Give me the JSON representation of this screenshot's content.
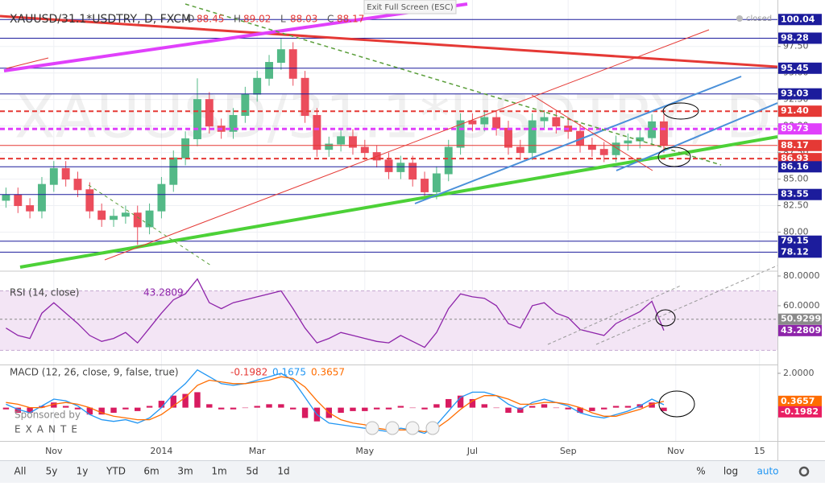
{
  "header": {
    "status": "closed",
    "exit_full_screen": "Exit Full Screen (ESC)",
    "sponsor": "Sponsored by",
    "sponsor_name": "EXANTE"
  },
  "toolbar": {
    "ranges": [
      "All",
      "5y",
      "1y",
      "YTD",
      "6m",
      "3m",
      "1m",
      "5d",
      "1d"
    ],
    "options": [
      "%",
      "log",
      "auto"
    ]
  },
  "chart_data": [
    {
      "type": "candlestick",
      "title": "XAUUSD/31.1*USDTRY, D, FXCM",
      "watermark": "XAUUSD/31.1*USDTRY, D",
      "ohlc": [
        {
          "label": "O",
          "value": 88.45
        },
        {
          "label": "H",
          "value": 89.02
        },
        {
          "label": "L",
          "value": 88.03
        },
        {
          "label": "C",
          "value": 88.17
        }
      ],
      "categories": [
        null,
        null,
        null,
        null,
        "Nov",
        null,
        null,
        null,
        null,
        null,
        null,
        null,
        null,
        "2014",
        null,
        null,
        null,
        null,
        null,
        null,
        null,
        "Mar",
        null,
        null,
        null,
        null,
        null,
        null,
        null,
        null,
        "May",
        null,
        null,
        null,
        null,
        null,
        null,
        null,
        null,
        "Jul",
        null,
        null,
        null,
        null,
        null,
        null,
        null,
        "Sep",
        null,
        null,
        null,
        null,
        null,
        null,
        null,
        null,
        "Nov",
        null,
        null,
        null,
        null,
        null,
        null,
        "15",
        null
      ],
      "open": [
        83.0,
        83.5,
        82.5,
        82,
        84.5,
        86,
        85,
        84,
        82,
        81.2,
        81.5,
        81.8,
        80.5,
        82,
        84.5,
        87,
        88.8,
        92.5,
        90,
        89.5,
        91,
        93,
        94.5,
        96,
        97.2,
        94.5,
        91,
        87.8,
        88.3,
        89,
        88,
        87.5,
        86.8,
        85.7,
        86.5,
        85,
        83.8,
        85.5,
        88,
        90.5,
        90.2,
        90.8,
        89.8,
        88,
        87.5,
        90.5,
        90.8,
        90,
        89.5,
        88.2,
        87.8,
        87.3,
        88.4,
        88.6,
        88.9,
        90.4,
        null,
        null,
        null,
        null,
        null,
        null,
        null,
        null,
        null
      ],
      "high": [
        84.2,
        84.2,
        83.2,
        85.2,
        86.7,
        86.7,
        85.7,
        84.7,
        82.7,
        82.2,
        82.5,
        82.5,
        82.7,
        85.2,
        87.7,
        89.5,
        94.5,
        93.2,
        90.7,
        91.7,
        93.7,
        95.2,
        96.7,
        98.3,
        97.9,
        95.2,
        91.7,
        89,
        89.7,
        89.7,
        88.7,
        88.2,
        87.5,
        87.2,
        87.2,
        85.7,
        86.2,
        88.7,
        91.2,
        91.2,
        91.5,
        91.5,
        90.5,
        88.7,
        91.2,
        91.5,
        91.5,
        90.7,
        90.2,
        88.9,
        88.5,
        89.1,
        89.3,
        89.6,
        91.1,
        91.1,
        null,
        null,
        null,
        null,
        null,
        null,
        null,
        null,
        null
      ],
      "low": [
        82.3,
        81.8,
        81.3,
        81.3,
        83.8,
        84.3,
        83.3,
        81.3,
        80.5,
        80.5,
        80.8,
        78.8,
        79.8,
        81.3,
        83.8,
        86.3,
        88.1,
        89.3,
        88.8,
        88.8,
        90.3,
        92.3,
        93.8,
        95.3,
        93.8,
        90.3,
        87.1,
        87.1,
        87.6,
        87.3,
        86.8,
        86.1,
        85,
        85,
        84.3,
        83.1,
        83.1,
        84.8,
        87.3,
        89.5,
        89.5,
        89.1,
        87.3,
        86.8,
        86.8,
        89.8,
        89.3,
        88.8,
        87.5,
        87.1,
        86.6,
        86.6,
        87.7,
        87.9,
        88.2,
        87.47,
        null,
        null,
        null,
        null,
        null,
        null,
        null,
        null,
        null
      ],
      "close": [
        83.5,
        82.5,
        82,
        84.5,
        86,
        85,
        84,
        82,
        81.2,
        81.5,
        81.8,
        80.5,
        82,
        84.5,
        87,
        88.8,
        92.5,
        90,
        89.5,
        91,
        93,
        94.5,
        96,
        97.2,
        94.5,
        91,
        87.8,
        88.3,
        89,
        88,
        87.5,
        86.8,
        85.7,
        86.5,
        85,
        83.8,
        85.5,
        88,
        90.5,
        90.2,
        90.8,
        89.8,
        88,
        87.5,
        90.5,
        90.8,
        90,
        89.5,
        88.2,
        87.8,
        87.3,
        88.4,
        88.6,
        88.9,
        90.4,
        88.17,
        null,
        null,
        null,
        null,
        null,
        null,
        null,
        null,
        null
      ],
      "up_color": "#53b987",
      "down_color": "#eb4d5c",
      "ylim": [
        76.4,
        101.5
      ],
      "yticks": [
        {
          "value": 80,
          "label": "80.00"
        },
        {
          "value": 82.5,
          "label": "82.50"
        },
        {
          "value": 85,
          "label": "85.00"
        },
        {
          "value": 87.5,
          "label": "87.50"
        },
        {
          "value": 90,
          "label": "90.00"
        },
        {
          "value": 92.5,
          "label": "92.50"
        },
        {
          "value": 95,
          "label": "95.00"
        },
        {
          "value": 97.5,
          "label": "97.50"
        }
      ],
      "grid": true,
      "price_lines": [
        {
          "value": 100.04,
          "label": "100.04",
          "color": "#1c1c9c",
          "style": "solid"
        },
        {
          "value": 98.28,
          "label": "98.28",
          "color": "#1c1c9c",
          "style": "solid"
        },
        {
          "value": 95.45,
          "label": "95.45",
          "color": "#1c1c9c",
          "style": "solid"
        },
        {
          "value": 93.03,
          "label": "93.03",
          "color": "#1c1c9c",
          "style": "solid"
        },
        {
          "value": 91.4,
          "label": "91.40",
          "color": "#e53935",
          "style": "dashed"
        },
        {
          "value": 89.73,
          "label": "89.73",
          "color": "#e040fb",
          "style": "dashed-thick"
        },
        {
          "value": 88.17,
          "label": "88.17",
          "color": "#e53935",
          "style": "solid"
        },
        {
          "value": 86.93,
          "label": "86.93",
          "color": "#e53935",
          "style": "dashed"
        },
        {
          "value": 86.16,
          "label": "86.16",
          "color": "#1c1c9c",
          "style": "solid"
        },
        {
          "value": 83.55,
          "label": "83.55",
          "color": "#1c1c9c",
          "style": "solid"
        },
        {
          "value": 79.15,
          "label": "79.15",
          "color": "#1c1c9c",
          "style": "solid"
        },
        {
          "value": 78.12,
          "label": "78.12",
          "color": "#1c1c9c",
          "style": "solid"
        }
      ]
    },
    {
      "type": "line",
      "title": "RSI (14, close)",
      "color": "#8e24aa",
      "values": [
        45,
        40,
        38,
        55,
        62,
        55,
        48,
        40,
        36,
        38,
        42,
        35,
        45,
        55,
        64,
        68,
        78,
        62,
        58,
        62,
        64,
        66,
        68,
        70,
        58,
        45,
        35,
        38,
        42,
        40,
        38,
        36,
        35,
        40,
        36,
        32,
        42,
        58,
        68,
        66,
        65,
        60,
        48,
        45,
        60,
        62,
        55,
        52,
        44,
        42,
        40,
        48,
        52,
        56,
        63,
        43.2809,
        null,
        null,
        null,
        null,
        null,
        null,
        null,
        null,
        null
      ],
      "band": [
        30,
        70
      ],
      "levels": [
        50.9299
      ],
      "ylim": [
        21,
        82.7
      ],
      "yticks": [
        {
          "value": 60,
          "label": "60.0000"
        },
        {
          "value": 80,
          "label": "80.0000"
        }
      ]
    },
    {
      "type": "macd",
      "title": "MACD (12, 26, close, 9, false, true)",
      "series": [
        {
          "color": "#2196f3",
          "values": [
            0.2,
            -0.1,
            -0.3,
            0.1,
            0.5,
            0.4,
            0.1,
            -0.4,
            -0.7,
            -0.8,
            -0.7,
            -0.9,
            -0.6,
            0.0,
            0.8,
            1.4,
            2.2,
            1.8,
            1.4,
            1.3,
            1.4,
            1.6,
            1.8,
            2.0,
            1.6,
            0.6,
            -0.4,
            -0.9,
            -1.0,
            -1.1,
            -1.2,
            -1.3,
            -1.4,
            -1.2,
            -1.3,
            -1.5,
            -1.0,
            -0.2,
            0.6,
            0.9,
            0.9,
            0.7,
            0.2,
            -0.1,
            0.3,
            0.5,
            0.3,
            0.1,
            -0.3,
            -0.5,
            -0.6,
            -0.4,
            -0.2,
            0.1,
            0.5,
            0.1675,
            null,
            null,
            null,
            null,
            null,
            null,
            null,
            null,
            null
          ]
        },
        {
          "color": "#ff6d00",
          "values": [
            0.3,
            0.2,
            0.0,
            0.0,
            0.2,
            0.3,
            0.2,
            0.0,
            -0.3,
            -0.5,
            -0.6,
            -0.7,
            -0.7,
            -0.4,
            0.1,
            0.6,
            1.3,
            1.6,
            1.5,
            1.4,
            1.4,
            1.5,
            1.6,
            1.8,
            1.7,
            1.2,
            0.4,
            -0.3,
            -0.7,
            -0.9,
            -1.0,
            -1.2,
            -1.3,
            -1.3,
            -1.3,
            -1.4,
            -1.2,
            -0.7,
            -0.1,
            0.4,
            0.7,
            0.7,
            0.5,
            0.2,
            0.2,
            0.3,
            0.3,
            0.2,
            0.0,
            -0.3,
            -0.5,
            -0.5,
            -0.3,
            -0.1,
            0.2,
            0.3657,
            null,
            null,
            null,
            null,
            null,
            null,
            null,
            null,
            null
          ]
        }
      ],
      "histogram": {
        "color": "#d81b60",
        "values": [
          -0.1,
          -0.3,
          -0.3,
          0.1,
          0.3,
          0.1,
          -0.1,
          -0.4,
          -0.4,
          -0.3,
          -0.1,
          -0.2,
          0.1,
          0.4,
          0.7,
          0.8,
          0.9,
          0.2,
          -0.1,
          -0.1,
          0.0,
          0.1,
          0.2,
          0.2,
          -0.1,
          -0.6,
          -0.8,
          -0.6,
          -0.3,
          -0.2,
          -0.2,
          -0.1,
          -0.1,
          0.1,
          0.0,
          -0.1,
          0.2,
          0.5,
          0.7,
          0.5,
          0.2,
          0.0,
          -0.3,
          -0.3,
          0.1,
          0.2,
          0.0,
          -0.1,
          -0.3,
          -0.2,
          -0.1,
          0.1,
          0.1,
          0.2,
          0.3,
          -0.1982,
          null,
          null,
          null,
          null,
          null,
          null,
          null,
          null,
          null
        ]
      },
      "ylim": [
        -1.94,
        2.42
      ],
      "yticks": [
        {
          "value": 2,
          "label": "2.0000"
        }
      ]
    }
  ]
}
